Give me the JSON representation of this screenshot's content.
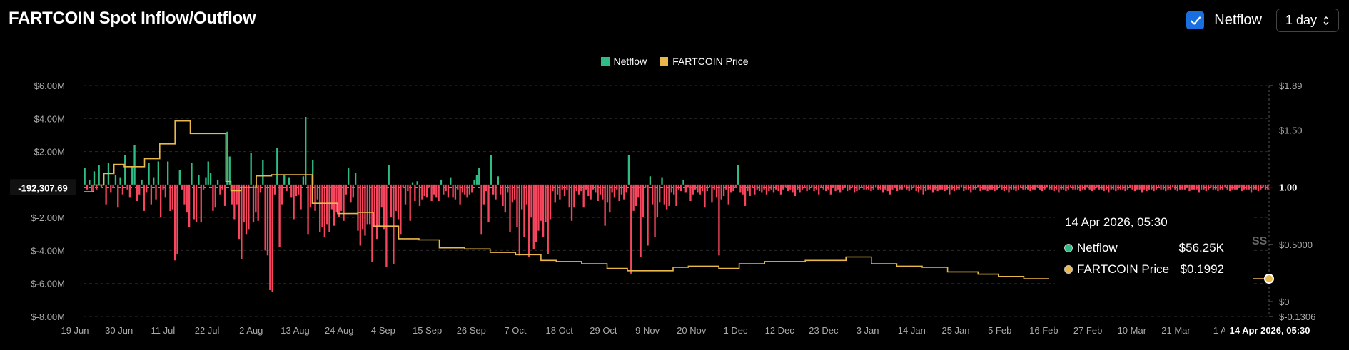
{
  "header": {
    "title": "FARTCOIN Spot Inflow/Outflow",
    "netflow_toggle_label": "Netflow",
    "interval_value": "1 day"
  },
  "colors": {
    "netflow": "#2ebd85",
    "netflow_negative": "#f6465d",
    "price": "#e8b84a",
    "legend_netflow": "#2ebd85",
    "legend_price": "#e8b84a",
    "accent": "#1a6fe0"
  },
  "legend": {
    "netflow": "Netflow",
    "price": "FARTCOIN Price"
  },
  "tooltip": {
    "title": "14 Apr 2026, 05:30",
    "netflow_label": "Netflow",
    "netflow_value": "$56.25K",
    "price_label": "FARTCOIN Price",
    "price_value": "$0.1992"
  },
  "watermark": "SS",
  "chart_data": {
    "type": "bar",
    "left_axis": {
      "ticks": [
        "$6.00M",
        "$4.00M",
        "$2.00M",
        "$-2.00M",
        "$-4.00M",
        "$-6.00M",
        "$-8.00M"
      ],
      "tick_values": [
        6000000,
        4000000,
        2000000,
        -2000000,
        -4000000,
        -6000000,
        -8000000
      ],
      "crosshair_label": "-192,307.69",
      "crosshair_value": -192307.69,
      "range": [
        -8000000,
        6000000
      ]
    },
    "right_axis": {
      "ticks": [
        "$1.89",
        "$1.50",
        "1.00",
        "$0.5000",
        "$0",
        "$-0.1306"
      ],
      "tick_values": [
        1.89,
        1.5,
        1.0,
        0.5,
        0,
        -0.1306
      ],
      "range": [
        -0.1306,
        1.89
      ]
    },
    "x_labels": [
      "19 Jun",
      "30 Jun",
      "11 Jul",
      "22 Jul",
      "2 Aug",
      "13 Aug",
      "24 Aug",
      "4 Sep",
      "15 Sep",
      "26 Sep",
      "7 Oct",
      "18 Oct",
      "29 Oct",
      "9 Nov",
      "20 Nov",
      "1 Dec",
      "12 Dec",
      "23 Dec",
      "3 Jan",
      "14 Jan",
      "25 Jan",
      "5 Feb",
      "16 Feb",
      "27 Feb",
      "10 Mar",
      "21 Mar",
      "1 A"
    ],
    "x_highlight_label": "14 Apr 2026, 05:30",
    "series": [
      {
        "name": "Netflow",
        "unit": "USD M",
        "values": [
          1.0,
          -0.3,
          0.3,
          -0.4,
          0.8,
          -0.3,
          1.2,
          -0.2,
          0.7,
          -1.2,
          1.3,
          -0.5,
          -0.2,
          0.6,
          -1.4,
          0.4,
          -0.6,
          1.8,
          -0.3,
          -0.8,
          1.1,
          2.4,
          -1.0,
          -0.6,
          0.3,
          -1.6,
          -0.5,
          1.3,
          -1.2,
          0.4,
          -0.9,
          1.4,
          -2.0,
          -0.3,
          -0.8,
          1.4,
          -1.6,
          -1.5,
          -4.6,
          -4.2,
          0.9,
          -0.3,
          -1.2,
          -1.7,
          -2.6,
          1.3,
          -2.1,
          -2.3,
          0.6,
          -2.3,
          -0.3,
          0.4,
          1.4,
          0.7,
          -1.6,
          -1.4,
          0.3,
          -0.6,
          -0.3,
          -1.3,
          3.2,
          1.7,
          -1.2,
          -2.1,
          -1.2,
          -3.3,
          -4.5,
          -2.3,
          -3.0,
          -2.7,
          1.9,
          -2.3,
          -1.7,
          -2.2,
          -0.5,
          1.5,
          -4.0,
          -4.3,
          -6.4,
          -6.5,
          -0.6,
          2.2,
          -3.8,
          -1.2,
          0.6,
          -0.4,
          0.4,
          -0.8,
          -2.1,
          -0.7,
          -0.6,
          -1.5,
          0.5,
          4.1,
          -3.0,
          -1.4,
          1.5,
          -1.6,
          -0.9,
          -2.9,
          -2.6,
          -3.2,
          -2.4,
          -2.9,
          -1.5,
          -2.5,
          -1.7,
          -2.0,
          -1.6,
          -2.2,
          -0.6,
          1.0,
          -1.1,
          -0.8,
          0.7,
          -2.8,
          -3.7,
          -2.7,
          -3.1,
          -2.4,
          -2.4,
          -4.7,
          -2.6,
          -3.3,
          -2.5,
          -1.4,
          -2.7,
          -5.0,
          1.2,
          -2.0,
          -4.8,
          -1.6,
          -2.1,
          -3.0,
          -0.2,
          -1.2,
          -0.4,
          -2.2,
          0.1,
          -1.0,
          0.2,
          -1.3,
          -0.9,
          -0.7,
          -0.8,
          -0.2,
          -1.0,
          -0.6,
          -0.8,
          -1.0,
          0.3,
          -0.6,
          -0.4,
          -0.8,
          0.4,
          -0.8,
          -0.9,
          -0.3,
          -1.2,
          -0.5,
          -0.6,
          -0.8,
          -0.6,
          -0.5,
          0.3,
          0.6,
          1.0,
          -3.0,
          -1.2,
          -0.4,
          -2.3,
          1.8,
          -0.6,
          -0.9,
          0.5,
          -0.6,
          -1.3,
          -1.7,
          -0.5,
          -2.9,
          -1.1,
          -0.9,
          -2.6,
          -4.3,
          -1.5,
          -3.2,
          -1.2,
          -4.4,
          -2.0,
          -3.9,
          -3.5,
          -2.8,
          -2.2,
          -3.2,
          -2.3,
          -4.2,
          -2.1,
          -0.4,
          -1.1,
          -0.6,
          -0.9,
          -0.3,
          -0.7,
          -0.3,
          -1.4,
          -2.2,
          -1.4,
          -0.4,
          -0.6,
          -0.4,
          -1.4,
          -0.3,
          -0.7,
          -0.9,
          -0.3,
          -0.5,
          -1.0,
          -0.6,
          -0.9,
          -2.5,
          -1.1,
          -1.7,
          -0.5,
          -0.8,
          -0.3,
          -1.0,
          -0.6,
          -0.9,
          -0.5,
          1.8,
          -5.4,
          -1.6,
          -1.3,
          -0.8,
          -4.4,
          -2.0,
          -0.2,
          -3.7,
          0.5,
          -1.2,
          -3.2,
          -2.0,
          -1.1,
          0.4,
          -1.2,
          -1.5,
          -1.3,
          -0.5,
          -0.6,
          -1.3,
          -0.3,
          -0.4,
          0.3,
          -0.5,
          -0.2,
          -1.0,
          -0.6,
          -0.3,
          -0.5,
          -0.6,
          -0.4,
          -1.4,
          -0.4,
          -0.2,
          -1.1,
          -0.3,
          -0.8,
          -4.3,
          -0.9,
          -0.7,
          -0.3,
          -1.2,
          -0.5,
          -0.4,
          -0.2,
          1.2,
          -0.5,
          -0.6,
          -1.3,
          -0.4,
          -0.7,
          -0.2,
          -0.6,
          -0.3,
          -0.4,
          -0.5,
          -0.3,
          -0.6,
          -0.4,
          -0.3,
          -0.5,
          -0.3,
          -0.4,
          -0.6,
          -0.3,
          -0.2,
          -0.4,
          -0.3,
          -0.5,
          -0.7,
          -0.3,
          -0.5,
          -0.3,
          -0.2,
          -0.4,
          -0.3,
          -0.2,
          -0.4,
          -0.3,
          -0.6,
          -0.2,
          -0.3,
          -0.4,
          -0.3,
          -0.6,
          -0.2,
          -0.4,
          -0.3,
          -0.5,
          -0.3,
          -0.2,
          -0.4,
          -0.3,
          -0.2,
          -0.5,
          -0.4,
          -0.3,
          -0.2,
          -0.3,
          -0.3,
          -0.3,
          -0.4,
          -0.3,
          -0.2,
          -0.3,
          -0.3,
          -0.5,
          -0.3,
          -0.4,
          -0.6,
          -0.3,
          -0.2,
          -0.4,
          -0.3,
          -0.3,
          -0.2,
          -0.3,
          -0.4,
          -0.3,
          -0.2,
          -0.4,
          -0.5,
          -0.3,
          -0.6,
          -0.4,
          -0.3,
          -0.3,
          -0.5,
          -0.3,
          -0.4,
          -0.3,
          -0.3,
          -0.4,
          -0.3,
          -0.6,
          -0.3,
          -0.4,
          -0.3,
          -0.3,
          -0.2,
          -0.4,
          -0.3,
          -0.3,
          -0.5,
          -0.3,
          -0.3,
          -0.2,
          -0.4,
          -0.3,
          -0.3,
          -0.4,
          -0.3,
          -0.3,
          -0.4,
          -0.3,
          -0.2,
          -0.3,
          -0.4,
          -0.3,
          -0.5,
          -0.3,
          -0.3,
          -0.4,
          -0.3,
          -0.2,
          -0.3,
          -0.3,
          -0.3,
          -0.4,
          -0.3,
          -0.3,
          -0.2,
          -0.3,
          -0.4,
          -0.3,
          -0.2,
          -0.3,
          -0.3,
          -0.4,
          -0.3,
          -0.5,
          -0.3,
          -0.3,
          -0.4,
          -0.3,
          -0.2,
          -0.3,
          -0.3,
          -0.3,
          -0.4,
          -0.3,
          -0.3,
          -0.2,
          -0.3,
          -0.4,
          -0.3,
          -0.2,
          -0.3,
          -0.3,
          -0.4,
          -0.3,
          -0.5,
          -0.3,
          -0.3,
          -0.4,
          -0.3,
          -0.3,
          -0.3,
          -0.4,
          -0.3,
          -0.2,
          -0.3,
          -0.4,
          -0.3,
          -0.3,
          -0.5,
          -0.3,
          -0.4,
          -0.3,
          -0.3,
          -0.4,
          -0.3,
          -0.2,
          -0.3,
          -0.3,
          -0.4,
          -0.3,
          -0.3,
          -0.2,
          -0.3,
          -0.4,
          -0.3,
          -0.3,
          -0.3,
          -0.2,
          -0.4,
          -0.3,
          -0.3,
          -0.3,
          -0.5,
          -0.3,
          -0.3,
          -0.4,
          -0.3,
          -0.2,
          -0.3,
          -0.3,
          -0.4,
          -0.3,
          -0.3,
          -0.2,
          -0.3,
          -0.4,
          -0.3,
          -0.3,
          -0.3,
          -0.2,
          -0.4,
          -0.3,
          -0.3,
          -0.3,
          -0.5,
          -0.3,
          -0.3,
          -0.4,
          -0.3,
          -0.2,
          -0.3,
          -0.3
        ]
      },
      {
        "name": "FARTCOIN Price",
        "unit": "USD",
        "points": [
          [
            0,
            0.96
          ],
          [
            4,
            0.96
          ],
          [
            4,
            1.02
          ],
          [
            8,
            1.02
          ],
          [
            8,
            1.12
          ],
          [
            12,
            1.12
          ],
          [
            12,
            1.2
          ],
          [
            16,
            1.2
          ],
          [
            16,
            1.18
          ],
          [
            24,
            1.18
          ],
          [
            24,
            1.25
          ],
          [
            30,
            1.25
          ],
          [
            30,
            1.38
          ],
          [
            36,
            1.38
          ],
          [
            36,
            1.58
          ],
          [
            42,
            1.58
          ],
          [
            42,
            1.47
          ],
          [
            56,
            1.47
          ],
          [
            56,
            1.05
          ],
          [
            58,
            1.05
          ],
          [
            58,
            0.97
          ],
          [
            62,
            0.97
          ],
          [
            62,
            1.0
          ],
          [
            68,
            1.0
          ],
          [
            68,
            1.1
          ],
          [
            74,
            1.1
          ],
          [
            74,
            1.11
          ],
          [
            90,
            1.11
          ],
          [
            90,
            0.86
          ],
          [
            100,
            0.86
          ],
          [
            100,
            0.77
          ],
          [
            108,
            0.77
          ],
          [
            108,
            0.78
          ],
          [
            114,
            0.78
          ],
          [
            114,
            0.66
          ],
          [
            124,
            0.66
          ],
          [
            124,
            0.55
          ],
          [
            132,
            0.55
          ],
          [
            132,
            0.54
          ],
          [
            140,
            0.54
          ],
          [
            140,
            0.47
          ],
          [
            150,
            0.47
          ],
          [
            150,
            0.46
          ],
          [
            160,
            0.46
          ],
          [
            160,
            0.43
          ],
          [
            170,
            0.43
          ],
          [
            170,
            0.41
          ],
          [
            180,
            0.41
          ],
          [
            180,
            0.36
          ],
          [
            186,
            0.36
          ],
          [
            186,
            0.35
          ],
          [
            196,
            0.35
          ],
          [
            196,
            0.33
          ],
          [
            206,
            0.33
          ],
          [
            206,
            0.29
          ],
          [
            214,
            0.29
          ],
          [
            214,
            0.27
          ],
          [
            232,
            0.27
          ],
          [
            232,
            0.3
          ],
          [
            238,
            0.3
          ],
          [
            238,
            0.31
          ],
          [
            250,
            0.31
          ],
          [
            250,
            0.29
          ],
          [
            258,
            0.29
          ],
          [
            258,
            0.33
          ],
          [
            268,
            0.33
          ],
          [
            268,
            0.35
          ],
          [
            284,
            0.35
          ],
          [
            284,
            0.36
          ],
          [
            300,
            0.36
          ],
          [
            300,
            0.39
          ],
          [
            310,
            0.39
          ],
          [
            310,
            0.33
          ],
          [
            320,
            0.33
          ],
          [
            320,
            0.31
          ],
          [
            330,
            0.31
          ],
          [
            330,
            0.3
          ],
          [
            340,
            0.3
          ],
          [
            340,
            0.26
          ],
          [
            352,
            0.26
          ],
          [
            352,
            0.24
          ],
          [
            360,
            0.24
          ],
          [
            360,
            0.22
          ],
          [
            370,
            0.22
          ],
          [
            370,
            0.2
          ],
          [
            380,
            0.2
          ]
        ]
      }
    ]
  }
}
